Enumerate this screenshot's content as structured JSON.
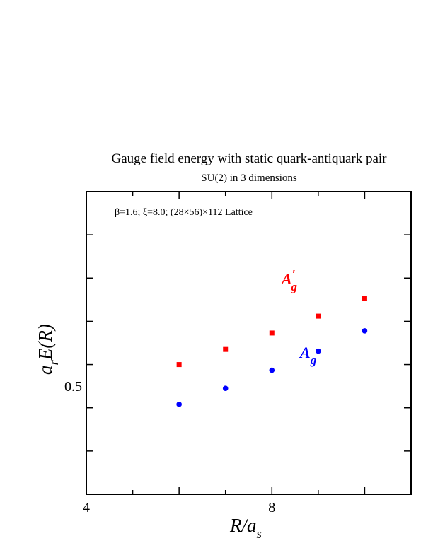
{
  "chart_data": {
    "type": "scatter",
    "title": "Gauge field energy with static quark-antiquark pair",
    "subtitle": "SU(2) in 3 dimensions",
    "annotation": "β=1.6;  ξ=8.0; (28×56)×112 Lattice",
    "xlabel": {
      "main": "R/a",
      "sub": "s"
    },
    "ylabel": {
      "a": "a",
      "sub": "r",
      "rest": "E(R)"
    },
    "xlim": [
      4,
      11
    ],
    "ylim": [
      0.25,
      0.95
    ],
    "x_ticks_labeled": [
      4,
      8
    ],
    "y_ticks_labeled": [
      0.5
    ],
    "grid": false,
    "series": [
      {
        "name": "A′g",
        "label_main": "A",
        "label_prime": "′",
        "label_sub": "g",
        "color": "#ff0000",
        "marker": "square",
        "x": [
          6,
          7,
          8,
          9,
          10
        ],
        "y": [
          0.55,
          0.585,
          0.623,
          0.662,
          0.703
        ]
      },
      {
        "name": "Ag",
        "label_main": "A",
        "label_sub": "g",
        "color": "#0000ff",
        "marker": "circle",
        "x": [
          6,
          7,
          8,
          9,
          10
        ],
        "y": [
          0.458,
          0.495,
          0.537,
          0.581,
          0.628
        ]
      }
    ]
  }
}
